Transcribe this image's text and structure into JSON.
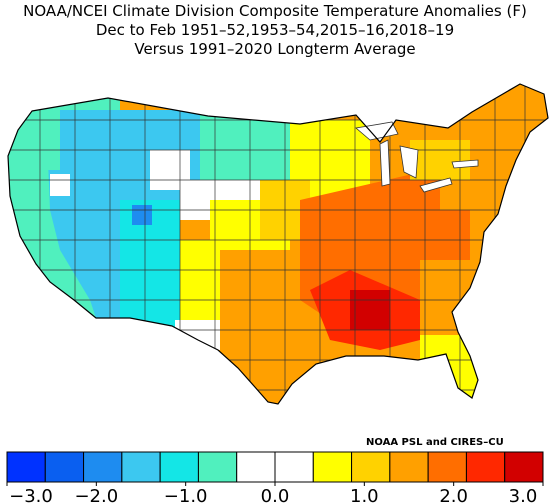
{
  "title": {
    "line1": "NOAA/NCEI Climate Division Composite Temperature Anomalies (F)",
    "line2": "Dec to Feb  1951–52,1953–54,2015–16,2018–19",
    "line3": "Versus 1991–2020 Longterm Average"
  },
  "credit": "NOAA PSL and CIRES–CU",
  "colorbar": {
    "colors": [
      "#0032ff",
      "#0a5ff0",
      "#1e8cf0",
      "#3cc8f0",
      "#14e6e6",
      "#50f0be",
      "#ffffff",
      "#ffffff",
      "#ffff00",
      "#ffd200",
      "#ffa000",
      "#ff6e00",
      "#ff2800",
      "#d20000"
    ],
    "tick_labels": [
      "−3.0",
      "−2.0",
      "−1.0",
      "0.0",
      "1.0",
      "2.0",
      "3.0"
    ],
    "range": [
      -3.0,
      3.0
    ],
    "step": 0.5
  },
  "regions": [
    {
      "name": "pacific-northwest",
      "color": "#50f0be"
    },
    {
      "name": "northern-rockies",
      "color": "#3cc8f0"
    },
    {
      "name": "great-basin",
      "color": "#3cc8f0"
    },
    {
      "name": "california",
      "color": "#50f0be"
    },
    {
      "name": "southwest",
      "color": "#3cc8f0"
    },
    {
      "name": "colorado-plateau",
      "color": "#14e6e6"
    },
    {
      "name": "northern-plains",
      "color": "#50f0be"
    },
    {
      "name": "central-plains",
      "color": "#ffffff"
    },
    {
      "name": "southern-plains",
      "color": "#ffd200"
    },
    {
      "name": "texas",
      "color": "#ffa000"
    },
    {
      "name": "upper-midwest",
      "color": "#ffff00"
    },
    {
      "name": "ohio-valley",
      "color": "#ff6e00"
    },
    {
      "name": "gulf-coast",
      "color": "#ff2800"
    },
    {
      "name": "southeast",
      "color": "#ffa000"
    },
    {
      "name": "florida",
      "color": "#ffff00"
    },
    {
      "name": "northeast",
      "color": "#ffa000"
    },
    {
      "name": "new-england",
      "color": "#ffa000"
    }
  ]
}
